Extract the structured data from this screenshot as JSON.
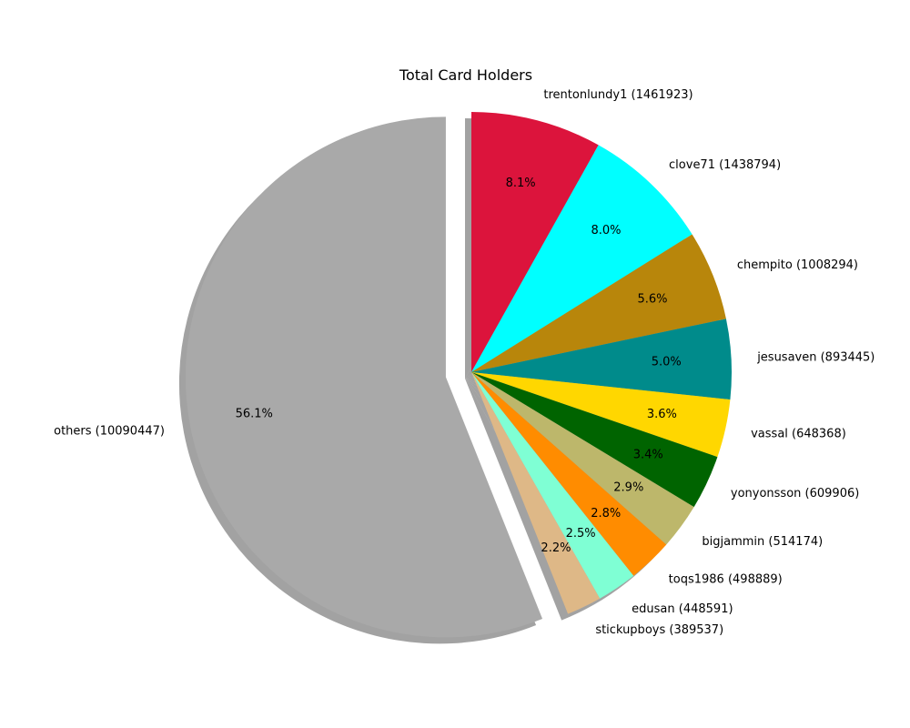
{
  "chart_data": {
    "type": "pie",
    "title": "Total Card Holders",
    "start_angle_deg": 90,
    "direction": "clockwise",
    "shadow": true,
    "slices": [
      {
        "label": "trentonlundy1 (1461923)",
        "value": 1461923,
        "pct_label": "8.1%",
        "color": "#DC143C",
        "explode": false
      },
      {
        "label": "clove71 (1438794)",
        "value": 1438794,
        "pct_label": "8.0%",
        "color": "#00FFFF",
        "explode": false
      },
      {
        "label": "chempito (1008294)",
        "value": 1008294,
        "pct_label": "5.6%",
        "color": "#B8860B",
        "explode": false
      },
      {
        "label": "jesusaven (893445)",
        "value": 893445,
        "pct_label": "5.0%",
        "color": "#008B8B",
        "explode": false
      },
      {
        "label": "vassal (648368)",
        "value": 648368,
        "pct_label": "3.6%",
        "color": "#FFD700",
        "explode": false
      },
      {
        "label": "yonyonsson (609906)",
        "value": 609906,
        "pct_label": "3.4%",
        "color": "#006400",
        "explode": false
      },
      {
        "label": "bigjammin (514174)",
        "value": 514174,
        "pct_label": "2.9%",
        "color": "#BDB76B",
        "explode": false
      },
      {
        "label": "toqs1986 (498889)",
        "value": 498889,
        "pct_label": "2.8%",
        "color": "#FF8C00",
        "explode": false
      },
      {
        "label": "edusan (448591)",
        "value": 448591,
        "pct_label": "2.5%",
        "color": "#7FFFD4",
        "explode": false
      },
      {
        "label": "stickupboys (389537)",
        "value": 389537,
        "pct_label": "2.2%",
        "color": "#DEB887",
        "explode": false
      },
      {
        "label": "others (10090447)",
        "value": 10090447,
        "pct_label": "56.1%",
        "color": "#A9A9A9",
        "explode": true
      }
    ]
  }
}
